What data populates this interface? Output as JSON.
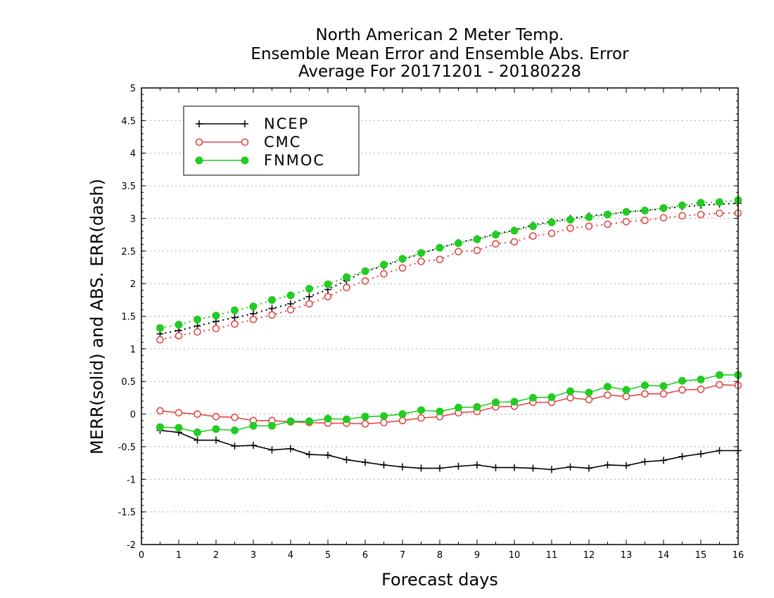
{
  "chart_data": {
    "type": "line",
    "title_lines": [
      "North American 2 Meter Temp.",
      "Ensemble Mean Error and Ensemble Abs. Error",
      "Average For 20171201 - 20180228"
    ],
    "xlabel": "Forecast days",
    "ylabel": "MERR(solid) and ABS. ERR(dash)",
    "xlim": [
      0,
      16
    ],
    "ylim": [
      -2,
      5
    ],
    "xticks": [
      "0",
      "1",
      "2",
      "3",
      "4",
      "5",
      "6",
      "7",
      "8",
      "9",
      "10",
      "11",
      "12",
      "13",
      "14",
      "15",
      "16"
    ],
    "yticks": [
      "-2",
      "-1.5",
      "-1",
      "-0.5",
      "0",
      "0.5",
      "1",
      "1.5",
      "2",
      "2.5",
      "3",
      "3.5",
      "4",
      "4.5",
      "5"
    ],
    "grid": true,
    "legend_position": "top-left",
    "x": [
      0.5,
      1,
      1.5,
      2,
      2.5,
      3,
      3.5,
      4,
      4.5,
      5,
      5.5,
      6,
      6.5,
      7,
      7.5,
      8,
      8.5,
      9,
      9.5,
      10,
      10.5,
      11,
      11.5,
      12,
      12.5,
      13,
      13.5,
      14,
      14.5,
      15,
      15.5,
      16
    ],
    "series": [
      {
        "name": "NCEP",
        "color": "#000000",
        "marker": "plus",
        "merr": [
          -0.25,
          -0.28,
          -0.4,
          -0.4,
          -0.49,
          -0.48,
          -0.55,
          -0.53,
          -0.62,
          -0.63,
          -0.7,
          -0.74,
          -0.78,
          -0.81,
          -0.83,
          -0.83,
          -0.8,
          -0.78,
          -0.82,
          -0.82,
          -0.83,
          -0.85,
          -0.81,
          -0.83,
          -0.78,
          -0.79,
          -0.73,
          -0.71,
          -0.65,
          -0.61,
          -0.56,
          -0.56
        ],
        "abs_err": [
          1.23,
          1.28,
          1.35,
          1.42,
          1.48,
          1.54,
          1.62,
          1.69,
          1.8,
          1.91,
          2.05,
          2.19,
          2.27,
          2.37,
          2.46,
          2.55,
          2.63,
          2.69,
          2.76,
          2.82,
          2.9,
          2.95,
          3.0,
          3.04,
          3.06,
          3.1,
          3.12,
          3.15,
          3.18,
          3.2,
          3.22,
          3.23
        ]
      },
      {
        "name": "CMC",
        "color": "#e04848",
        "marker": "open-circle",
        "merr": [
          0.05,
          0.02,
          0.0,
          -0.04,
          -0.05,
          -0.1,
          -0.1,
          -0.12,
          -0.13,
          -0.14,
          -0.14,
          -0.15,
          -0.13,
          -0.1,
          -0.06,
          -0.04,
          0.02,
          0.04,
          0.11,
          0.12,
          0.18,
          0.18,
          0.25,
          0.22,
          0.29,
          0.27,
          0.31,
          0.31,
          0.37,
          0.38,
          0.45,
          0.44
        ],
        "abs_err": [
          1.14,
          1.2,
          1.26,
          1.31,
          1.38,
          1.45,
          1.52,
          1.6,
          1.69,
          1.8,
          1.94,
          2.04,
          2.15,
          2.24,
          2.34,
          2.37,
          2.49,
          2.51,
          2.61,
          2.64,
          2.73,
          2.77,
          2.85,
          2.88,
          2.91,
          2.95,
          2.97,
          3.01,
          3.04,
          3.06,
          3.08,
          3.08
        ]
      },
      {
        "name": "FNMOC",
        "color": "#22cc22",
        "marker": "filled-circle",
        "merr": [
          -0.2,
          -0.21,
          -0.28,
          -0.23,
          -0.25,
          -0.18,
          -0.18,
          -0.11,
          -0.11,
          -0.07,
          -0.08,
          -0.04,
          -0.03,
          0.0,
          0.06,
          0.04,
          0.1,
          0.11,
          0.18,
          0.19,
          0.25,
          0.26,
          0.35,
          0.33,
          0.42,
          0.37,
          0.44,
          0.43,
          0.51,
          0.53,
          0.6,
          0.6
        ],
        "abs_err": [
          1.32,
          1.37,
          1.45,
          1.51,
          1.59,
          1.65,
          1.75,
          1.82,
          1.92,
          1.99,
          2.1,
          2.19,
          2.29,
          2.38,
          2.47,
          2.55,
          2.62,
          2.68,
          2.75,
          2.81,
          2.88,
          2.94,
          2.98,
          3.02,
          3.06,
          3.1,
          3.12,
          3.16,
          3.2,
          3.24,
          3.25,
          3.28
        ]
      }
    ]
  }
}
